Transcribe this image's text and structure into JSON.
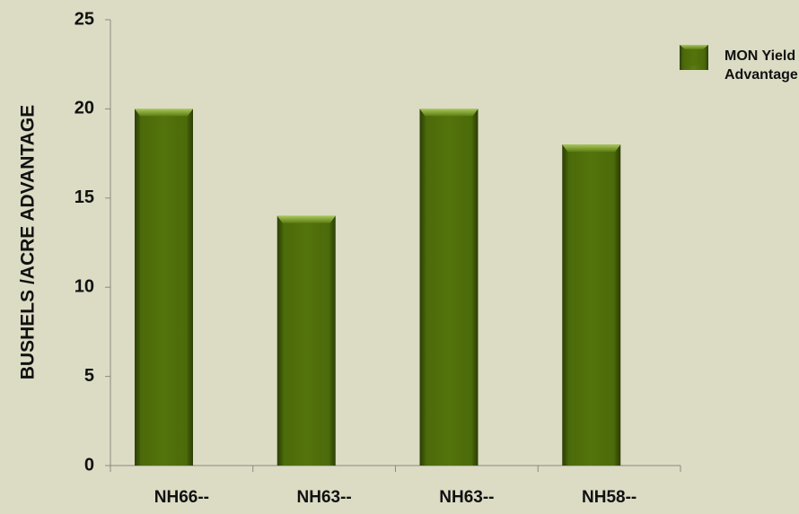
{
  "chart_data": {
    "type": "bar",
    "y_label": "BUSHELS /ACRE ADVANTAGE",
    "categories": [
      "NH66--",
      "NH63--",
      "NH63--",
      "NH58--"
    ],
    "series": [
      {
        "name": "MON Yield Advantage",
        "color": "#4f6e0a",
        "values": [
          20,
          14,
          20,
          18
        ]
      }
    ],
    "ylim": [
      0,
      25
    ],
    "yticks": [
      0,
      5,
      10,
      15,
      20,
      25
    ]
  }
}
